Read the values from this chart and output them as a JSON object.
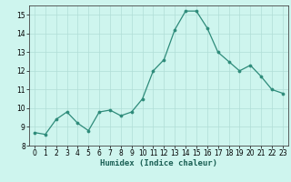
{
  "x": [
    0,
    1,
    2,
    3,
    4,
    5,
    6,
    7,
    8,
    9,
    10,
    11,
    12,
    13,
    14,
    15,
    16,
    17,
    18,
    19,
    20,
    21,
    22,
    23
  ],
  "y": [
    8.7,
    8.6,
    9.4,
    9.8,
    9.2,
    8.8,
    9.8,
    9.9,
    9.6,
    9.8,
    10.5,
    12.0,
    12.6,
    14.2,
    15.2,
    15.2,
    14.3,
    13.0,
    12.5,
    12.0,
    12.3,
    11.7,
    11.0,
    10.8
  ],
  "line_color": "#2e8b7a",
  "marker_color": "#2e8b7a",
  "bg_color": "#cef5ee",
  "grid_color": "#b0ddd6",
  "axis_color": "#444444",
  "xlabel": "Humidex (Indice chaleur)",
  "ylim": [
    8,
    15.5
  ],
  "xlim": [
    -0.5,
    23.5
  ],
  "yticks": [
    8,
    9,
    10,
    11,
    12,
    13,
    14,
    15
  ],
  "xticks": [
    0,
    1,
    2,
    3,
    4,
    5,
    6,
    7,
    8,
    9,
    10,
    11,
    12,
    13,
    14,
    15,
    16,
    17,
    18,
    19,
    20,
    21,
    22,
    23
  ],
  "label_fontsize": 6.5,
  "tick_fontsize": 5.5
}
